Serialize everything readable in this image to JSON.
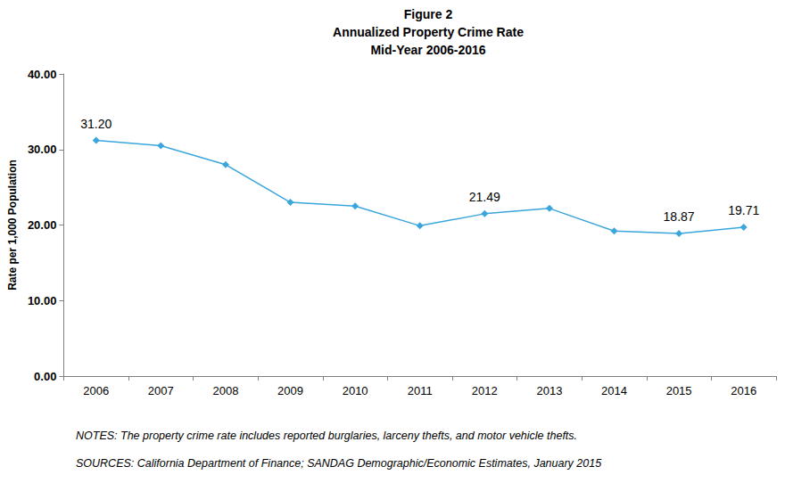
{
  "chart_data": {
    "type": "line",
    "title": [
      "Figure 2",
      "Annualized Property Crime Rate",
      "Mid-Year 2006-2016"
    ],
    "y_label": "Rate per 1,000 Population",
    "categories": [
      "2006",
      "2007",
      "2008",
      "2009",
      "2010",
      "2011",
      "2012",
      "2013",
      "2014",
      "2015",
      "2016"
    ],
    "values": [
      31.2,
      30.5,
      28.0,
      23.0,
      22.5,
      19.9,
      21.49,
      22.2,
      19.2,
      18.87,
      19.71
    ],
    "data_labels": true,
    "value_labels": [
      "31.20",
      null,
      null,
      null,
      null,
      null,
      "21.49",
      null,
      null,
      "18.87",
      "19.71"
    ],
    "color": "#3ba6dc",
    "marker": "diamond",
    "line_style": "solid",
    "ylim": [
      0,
      40
    ],
    "yticks": [
      {
        "value": 0,
        "label": "0.00"
      },
      {
        "value": 10,
        "label": "10.00"
      },
      {
        "value": 20,
        "label": "20.00"
      },
      {
        "value": 30,
        "label": "30.00"
      },
      {
        "value": 40,
        "label": "40.00"
      }
    ],
    "grid": false,
    "notes": "NOTES: The property crime rate includes reported burglaries, larceny thefts, and motor vehicle thefts.",
    "source": "SOURCES: California Department of Finance; SANDAG Demographic/Economic Estimates, January 2015"
  }
}
